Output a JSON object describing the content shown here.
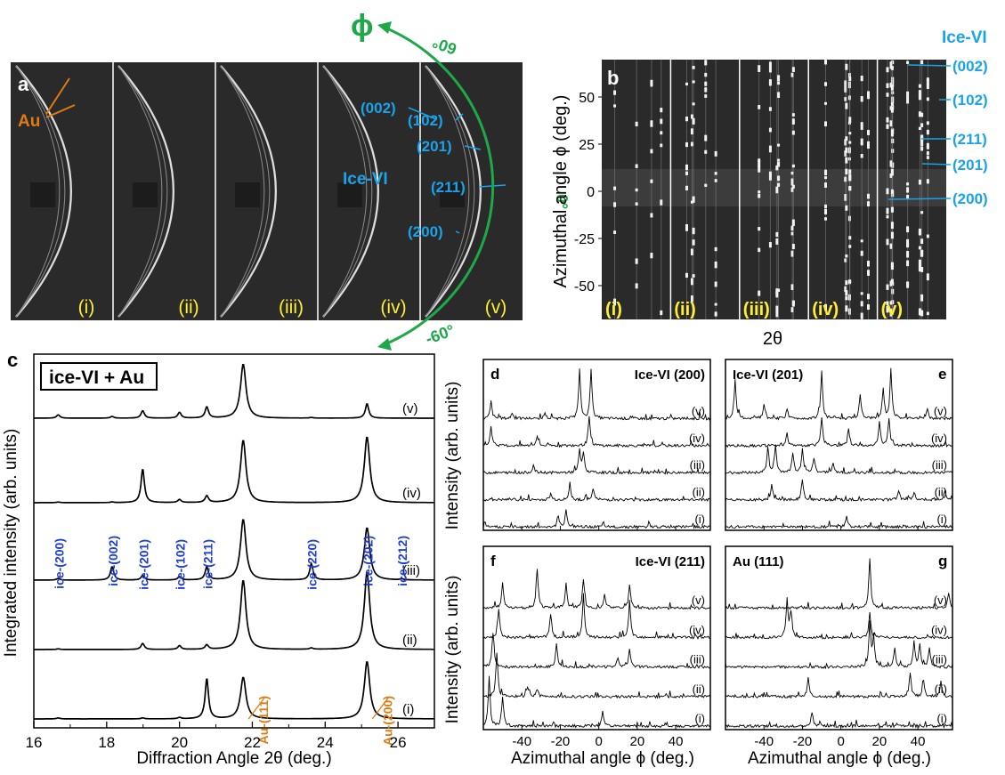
{
  "colors": {
    "ice_label": "#1aa3e8",
    "ice_peak": "#1f3fd8",
    "au": "#e07b12",
    "phi_arc": "#1fa84a",
    "roman": "#ffee33",
    "detector_bg": "#2a2a2a"
  },
  "panel_a": {
    "letter": "a",
    "au_label": "Au",
    "ice_label": "Ice-VI",
    "reflections": [
      "(002)",
      "(102)",
      "(201)",
      "(211)",
      "(200)"
    ],
    "frames": [
      "(i)",
      "(ii)",
      "(iii)",
      "(iv)",
      "(v)"
    ]
  },
  "phi_axis": {
    "symbol": "ϕ",
    "ticks": [
      "60°",
      "0°",
      "-60°"
    ]
  },
  "panel_b": {
    "letter": "b",
    "ice_label": "Ice-VI",
    "reflections": [
      "(002)",
      "(102)",
      "(211)",
      "(201)",
      "(200)"
    ],
    "frames": [
      "(i)",
      "(ii)",
      "(iii)",
      "(iv)",
      "(v)"
    ],
    "ylabel": "Azimuthal angle ϕ (deg.)",
    "xlabel": "2θ",
    "yticks": [
      "50",
      "25",
      "0",
      "-25",
      "-50"
    ]
  },
  "chart_data": [
    {
      "panel": "c",
      "type": "line",
      "legend": "ice-VI + Au",
      "xlabel": "Diffraction Angle 2θ (deg.)",
      "ylabel": "Integrated intensity (arb. units)",
      "xlim": [
        16,
        27
      ],
      "xticks": [
        16,
        18,
        20,
        22,
        24,
        26
      ],
      "series_labels": [
        "(v)",
        "(iv)",
        "(iii)",
        "(ii)",
        "(i)"
      ],
      "ice_peaks": [
        {
          "label": "ice-(200)",
          "x": 16.67
        },
        {
          "label": "ice-(002)",
          "x": 18.15
        },
        {
          "label": "ice-(201)",
          "x": 18.99
        },
        {
          "label": "ice-(102)",
          "x": 20.0
        },
        {
          "label": "ice-(211)",
          "x": 20.75
        },
        {
          "label": "ice-(220)",
          "x": 23.62
        },
        {
          "label": "ice-(202)",
          "x": 25.15
        },
        {
          "label": "ice-(212)",
          "x": 26.1
        }
      ],
      "au_peaks": [
        {
          "label": "Au-(111)",
          "x": 21.75
        },
        {
          "label": "Au-(200)",
          "x": 25.15
        }
      ],
      "series": [
        {
          "name": "(v)",
          "peaks": [
            [
              16.67,
              0.1
            ],
            [
              18.15,
              0.05
            ],
            [
              18.99,
              0.22
            ],
            [
              20.0,
              0.17
            ],
            [
              20.75,
              0.33
            ],
            [
              21.75,
              1.6
            ],
            [
              23.62,
              0.02
            ],
            [
              25.15,
              0.43
            ]
          ]
        },
        {
          "name": "(iv)",
          "peaks": [
            [
              16.67,
              0.02
            ],
            [
              18.15,
              0.02
            ],
            [
              18.99,
              1.0
            ],
            [
              20.0,
              0.09
            ],
            [
              20.75,
              0.2
            ],
            [
              21.75,
              1.85
            ],
            [
              25.15,
              1.95
            ]
          ]
        },
        {
          "name": "(iii)",
          "peaks": [
            [
              16.67,
              0.05
            ],
            [
              18.15,
              0.4
            ],
            [
              18.99,
              0.14
            ],
            [
              20.0,
              0.1
            ],
            [
              20.75,
              0.38
            ],
            [
              21.75,
              1.8
            ],
            [
              23.62,
              0.48
            ],
            [
              25.15,
              1.55
            ],
            [
              26.1,
              0.03
            ]
          ]
        },
        {
          "name": "(ii)",
          "peaks": [
            [
              16.67,
              0.02
            ],
            [
              18.99,
              0.18
            ],
            [
              20.0,
              0.11
            ],
            [
              20.75,
              0.13
            ],
            [
              21.75,
              2.05
            ],
            [
              23.62,
              0.04
            ],
            [
              25.15,
              2.3
            ]
          ]
        },
        {
          "name": "(i)",
          "peaks": [
            [
              16.67,
              0.03
            ],
            [
              18.99,
              0.03
            ],
            [
              20.0,
              0.04
            ],
            [
              20.75,
              1.2
            ],
            [
              21.75,
              1.23
            ],
            [
              25.15,
              1.7
            ]
          ]
        }
      ]
    },
    {
      "panel": "d",
      "type": "line",
      "title": "Ice-VI (200)",
      "ylabel": "Intensity (arb. units)",
      "series_labels": [
        "(v)",
        "(iv)",
        "(iii)",
        "(ii)",
        "(i)"
      ],
      "series": [
        {
          "name": "(v)",
          "peaks": [
            [
              -56,
              0.35
            ],
            [
              -45,
              0.12
            ],
            [
              -28,
              0.12
            ],
            [
              -10,
              1.0
            ],
            [
              -4,
              1.0
            ]
          ]
        },
        {
          "name": "(iv)",
          "peaks": [
            [
              -56,
              0.4
            ],
            [
              -32,
              0.2
            ],
            [
              -5,
              0.6
            ]
          ]
        },
        {
          "name": "(iii)",
          "peaks": [
            [
              -34,
              0.15
            ],
            [
              -10,
              0.45
            ],
            [
              -8,
              0.4
            ]
          ]
        },
        {
          "name": "(ii)",
          "peaks": [
            [
              -25,
              0.12
            ],
            [
              -15,
              0.3
            ],
            [
              -3,
              0.25
            ]
          ]
        },
        {
          "name": "(i)",
          "peaks": [
            [
              -21,
              0.2
            ],
            [
              -17,
              0.35
            ]
          ]
        }
      ]
    },
    {
      "panel": "e",
      "type": "line",
      "title": "Ice-VI (201)",
      "corner": "e",
      "series_labels": [
        "(v)",
        "(iv)",
        "(iii)",
        "(ii)",
        "(i)"
      ],
      "series": [
        {
          "name": "(v)",
          "peaks": [
            [
              -55,
              0.8
            ],
            [
              -40,
              0.3
            ],
            [
              -28,
              0.2
            ],
            [
              -10,
              1.0
            ],
            [
              10,
              0.5
            ],
            [
              22,
              0.6
            ],
            [
              26,
              1.0
            ],
            [
              45,
              0.2
            ]
          ]
        },
        {
          "name": "(iv)",
          "peaks": [
            [
              -28,
              0.25
            ],
            [
              -10,
              0.6
            ],
            [
              4,
              0.35
            ],
            [
              20,
              0.5
            ],
            [
              25,
              0.55
            ]
          ]
        },
        {
          "name": "(iii)",
          "peaks": [
            [
              -38,
              0.5
            ],
            [
              -34,
              0.55
            ],
            [
              -25,
              0.4
            ],
            [
              -20,
              0.5
            ],
            [
              -14,
              0.3
            ],
            [
              -4,
              0.2
            ]
          ]
        },
        {
          "name": "(ii)",
          "peaks": [
            [
              -36,
              0.3
            ],
            [
              -20,
              0.4
            ],
            [
              30,
              0.2
            ],
            [
              38,
              0.15
            ],
            [
              54,
              0.2
            ]
          ]
        },
        {
          "name": "(i)",
          "peaks": [
            [
              3,
              0.2
            ]
          ]
        }
      ]
    },
    {
      "panel": "f",
      "type": "line",
      "title": "Ice-VI (211)",
      "ylabel": "Intensity (arb. units)",
      "xlabel": "Azimuthal angle ϕ (deg.)",
      "xlim": [
        -60,
        58
      ],
      "xticks": [
        -40,
        -20,
        0,
        20,
        40
      ],
      "series_labels": [
        "(v)",
        "(iv)",
        "(iii)",
        "(ii)",
        "(i)"
      ],
      "series": [
        {
          "name": "(v)",
          "peaks": [
            [
              -50,
              0.5
            ],
            [
              -32,
              0.8
            ],
            [
              -17,
              0.45
            ],
            [
              -8,
              0.6
            ],
            [
              3,
              0.3
            ],
            [
              16,
              0.5
            ]
          ]
        },
        {
          "name": "(iv)",
          "peaks": [
            [
              -52,
              0.6
            ],
            [
              -25,
              0.5
            ],
            [
              -8,
              0.9
            ],
            [
              16,
              0.75
            ]
          ]
        },
        {
          "name": "(iii)",
          "peaks": [
            [
              -55,
              0.7
            ],
            [
              -22,
              0.5
            ],
            [
              10,
              0.2
            ],
            [
              16,
              0.35
            ]
          ]
        },
        {
          "name": "(ii)",
          "peaks": [
            [
              -53,
              0.9
            ],
            [
              -37,
              0.2
            ],
            [
              -32,
              0.15
            ]
          ]
        },
        {
          "name": "(i)",
          "peaks": [
            [
              -57,
              0.9
            ],
            [
              -50,
              0.6
            ],
            [
              2,
              0.3
            ]
          ]
        }
      ]
    },
    {
      "panel": "g",
      "type": "line",
      "title": "Au (111)",
      "corner": "g",
      "xlabel": "Azimuthal angle ϕ (deg.)",
      "xlim": [
        -60,
        58
      ],
      "xticks": [
        -40,
        -20,
        0,
        20,
        40
      ],
      "series_labels": [
        "(v)",
        "(iv)",
        "(iii)",
        "(ii)",
        "(i)"
      ],
      "series": [
        {
          "name": "(v)",
          "peaks": [
            [
              15,
              1.0
            ],
            [
              56,
              0.3
            ]
          ]
        },
        {
          "name": "(iv)",
          "peaks": [
            [
              -28,
              0.8
            ],
            [
              -26,
              0.5
            ],
            [
              15,
              0.5
            ]
          ]
        },
        {
          "name": "(iii)",
          "peaks": [
            [
              15,
              0.9
            ],
            [
              17,
              0.6
            ],
            [
              28,
              0.4
            ],
            [
              38,
              0.5
            ],
            [
              41,
              0.45
            ],
            [
              46,
              0.4
            ]
          ]
        },
        {
          "name": "(ii)",
          "peaks": [
            [
              -17,
              0.4
            ],
            [
              36,
              0.5
            ],
            [
              43,
              0.3
            ],
            [
              52,
              0.3
            ]
          ]
        },
        {
          "name": "(i)",
          "peaks": [
            [
              -15,
              0.3
            ]
          ]
        }
      ]
    }
  ]
}
